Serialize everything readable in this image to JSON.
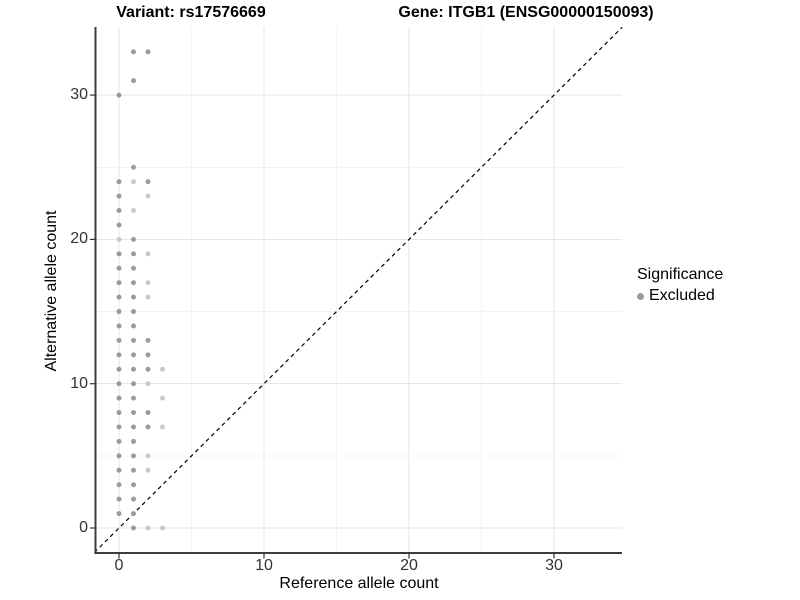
{
  "chart_data": {
    "type": "scatter",
    "title_left": "Variant: rs17576669",
    "title_right": "Gene: ITGB1 (ENSG00000150093)",
    "xlabel": "Reference allele count",
    "ylabel": "Alternative allele count",
    "xlim": [
      -1.7,
      34.7
    ],
    "ylim": [
      -1.7,
      34.7
    ],
    "x_ticks": [
      0,
      10,
      20,
      30
    ],
    "y_ticks": [
      0,
      10,
      20,
      30
    ],
    "minor_gridlines": [
      5,
      15,
      25
    ],
    "grid": "on",
    "reference_line": {
      "style": "dashed",
      "equation": "y = x",
      "color": "#000000"
    },
    "legend": {
      "title": "Significance",
      "position": "right",
      "items": [
        {
          "label": "Excluded",
          "color": "#9b9b9b"
        }
      ]
    },
    "point_format": "[reference_allele_count, alternative_allele_count, faint_flag]",
    "series": [
      {
        "name": "Excluded",
        "color": "#9b9b9b",
        "color_faint": "#c9c9c9",
        "points": [
          [
            1,
            33,
            0
          ],
          [
            2,
            33,
            0
          ],
          [
            1,
            31,
            0
          ],
          [
            0,
            30,
            0
          ],
          [
            1,
            25,
            0
          ],
          [
            0,
            24,
            0
          ],
          [
            1,
            24,
            1
          ],
          [
            2,
            24,
            0
          ],
          [
            0,
            23,
            0
          ],
          [
            2,
            23,
            1
          ],
          [
            0,
            22,
            0
          ],
          [
            1,
            22,
            1
          ],
          [
            0,
            21,
            0
          ],
          [
            0,
            20,
            1
          ],
          [
            1,
            20,
            0
          ],
          [
            0,
            19,
            0
          ],
          [
            1,
            19,
            0
          ],
          [
            2,
            19,
            1
          ],
          [
            0,
            18,
            0
          ],
          [
            1,
            18,
            0
          ],
          [
            0,
            17,
            0
          ],
          [
            1,
            17,
            0
          ],
          [
            2,
            17,
            1
          ],
          [
            0,
            16,
            0
          ],
          [
            1,
            16,
            0
          ],
          [
            2,
            16,
            1
          ],
          [
            0,
            15,
            0
          ],
          [
            1,
            15,
            0
          ],
          [
            0,
            14,
            0
          ],
          [
            1,
            14,
            0
          ],
          [
            0,
            13,
            0
          ],
          [
            1,
            13,
            0
          ],
          [
            2,
            13,
            0
          ],
          [
            0,
            12,
            0
          ],
          [
            1,
            12,
            0
          ],
          [
            2,
            12,
            0
          ],
          [
            0,
            11,
            0
          ],
          [
            1,
            11,
            0
          ],
          [
            2,
            11,
            0
          ],
          [
            3,
            11,
            1
          ],
          [
            0,
            10,
            0
          ],
          [
            1,
            10,
            0
          ],
          [
            2,
            10,
            1
          ],
          [
            0,
            9,
            0
          ],
          [
            1,
            9,
            0
          ],
          [
            3,
            9,
            1
          ],
          [
            0,
            8,
            0
          ],
          [
            1,
            8,
            0
          ],
          [
            2,
            8,
            0
          ],
          [
            0,
            7,
            0
          ],
          [
            1,
            7,
            0
          ],
          [
            2,
            7,
            0
          ],
          [
            3,
            7,
            1
          ],
          [
            0,
            6,
            0
          ],
          [
            1,
            6,
            0
          ],
          [
            0,
            5,
            0
          ],
          [
            1,
            5,
            0
          ],
          [
            2,
            5,
            1
          ],
          [
            0,
            4,
            0
          ],
          [
            1,
            4,
            0
          ],
          [
            2,
            4,
            1
          ],
          [
            0,
            3,
            0
          ],
          [
            1,
            3,
            0
          ],
          [
            0,
            2,
            0
          ],
          [
            1,
            2,
            0
          ],
          [
            0,
            1,
            0
          ],
          [
            1,
            1,
            0
          ],
          [
            1,
            0,
            0
          ],
          [
            2,
            0,
            1
          ],
          [
            3,
            0,
            1
          ]
        ]
      }
    ]
  },
  "colors": {
    "background": "#ffffff",
    "grid_major": "#e6e6e6",
    "grid_minor": "#f3f3f3",
    "axis_line": "#3c3c3c",
    "tick_text": "#333333",
    "title_text": "#000000"
  }
}
